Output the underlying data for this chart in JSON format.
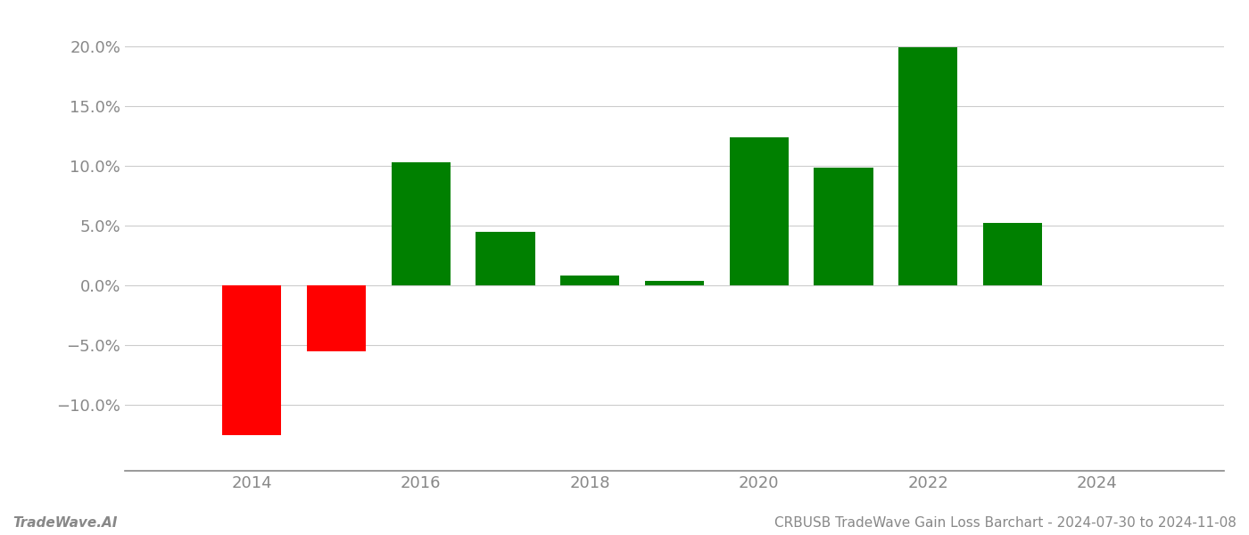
{
  "years": [
    2014,
    2015,
    2016,
    2017,
    2018,
    2019,
    2020,
    2021,
    2022,
    2023
  ],
  "values": [
    -0.125,
    -0.055,
    0.103,
    0.045,
    0.008,
    0.004,
    0.124,
    0.098,
    0.199,
    0.052
  ],
  "colors": [
    "#ff0000",
    "#ff0000",
    "#008000",
    "#008000",
    "#008000",
    "#008000",
    "#008000",
    "#008000",
    "#008000",
    "#008000"
  ],
  "ylim": [
    -0.155,
    0.225
  ],
  "yticks": [
    -0.1,
    -0.05,
    0.0,
    0.05,
    0.1,
    0.15,
    0.2
  ],
  "xticks": [
    2014,
    2016,
    2018,
    2020,
    2022,
    2024
  ],
  "xlim_left": 2012.5,
  "xlim_right": 2025.5,
  "bar_width": 0.7,
  "background_color": "#ffffff",
  "grid_color": "#cccccc",
  "spine_color": "#888888",
  "tick_label_color": "#888888",
  "footer_left": "TradeWave.AI",
  "footer_right": "CRBUSB TradeWave Gain Loss Barchart - 2024-07-30 to 2024-11-08",
  "footer_color": "#888888",
  "footer_fontsize": 11,
  "tick_fontsize": 13
}
